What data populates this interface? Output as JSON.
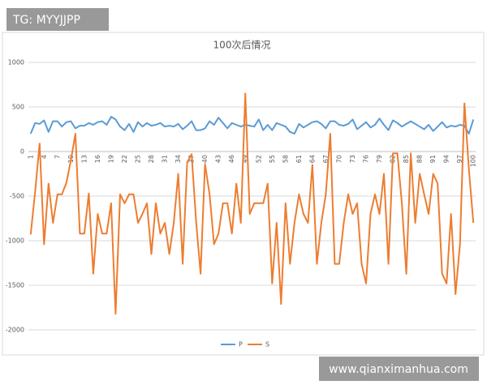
{
  "watermarks": {
    "top": "TG: MYYJJPP",
    "bottom": "www.qianximanhua.com"
  },
  "chart_data": {
    "type": "line",
    "title": "100次后情况",
    "categories": [
      1,
      null,
      null,
      4,
      null,
      null,
      7,
      null,
      null,
      10,
      null,
      null,
      13,
      null,
      null,
      16,
      null,
      null,
      19,
      null,
      null,
      22,
      null,
      null,
      25,
      null,
      null,
      28,
      null,
      null,
      31,
      null,
      null,
      34,
      null,
      null,
      37,
      null,
      null,
      40,
      null,
      null,
      43,
      null,
      null,
      46,
      null,
      null,
      49,
      null,
      null,
      52,
      null,
      null,
      55,
      null,
      null,
      58,
      null,
      null,
      61,
      null,
      null,
      64,
      null,
      null,
      67,
      null,
      null,
      70,
      null,
      null,
      73,
      null,
      null,
      76,
      null,
      null,
      79,
      null,
      null,
      82,
      null,
      null,
      85,
      null,
      null,
      88,
      null,
      null,
      91,
      null,
      null,
      94,
      null,
      null,
      97,
      null,
      null,
      100
    ],
    "series": [
      {
        "name": "P",
        "color": "#5b9bd5",
        "values": [
          200,
          320,
          310,
          350,
          220,
          340,
          340,
          280,
          330,
          340,
          260,
          290,
          290,
          320,
          300,
          330,
          340,
          300,
          390,
          360,
          280,
          240,
          310,
          220,
          330,
          280,
          320,
          290,
          300,
          320,
          280,
          290,
          280,
          310,
          250,
          290,
          340,
          240,
          240,
          260,
          340,
          300,
          380,
          320,
          260,
          320,
          300,
          280,
          300,
          290,
          280,
          360,
          240,
          300,
          240,
          320,
          300,
          280,
          220,
          200,
          310,
          270,
          300,
          330,
          340,
          310,
          260,
          340,
          340,
          300,
          290,
          310,
          360,
          250,
          290,
          330,
          270,
          300,
          370,
          300,
          240,
          350,
          320,
          280,
          310,
          340,
          310,
          280,
          250,
          300,
          230,
          280,
          330,
          270,
          290,
          280,
          300,
          290,
          200,
          360
        ]
      },
      {
        "name": "S",
        "color": "#ed7d31",
        "values": [
          -930,
          -450,
          90,
          -1040,
          -360,
          -800,
          -480,
          -480,
          -350,
          -100,
          200,
          -920,
          -920,
          -470,
          -1370,
          -700,
          -920,
          -920,
          -580,
          -1820,
          -480,
          -580,
          -480,
          -480,
          -800,
          -700,
          -580,
          -1150,
          -580,
          -920,
          -800,
          -1150,
          -800,
          -250,
          -1260,
          -120,
          -30,
          -780,
          -1370,
          -140,
          -480,
          -1040,
          -920,
          -580,
          -580,
          -920,
          -360,
          -800,
          650,
          -700,
          -580,
          -580,
          -580,
          -360,
          -1480,
          -800,
          -1710,
          -580,
          -1260,
          -800,
          -480,
          -700,
          -800,
          -150,
          -1260,
          -800,
          -480,
          200,
          -1260,
          -1260,
          -800,
          -480,
          -700,
          -580,
          -1260,
          -1480,
          -700,
          -480,
          -700,
          -250,
          -1260,
          -20,
          -20,
          -580,
          -1370,
          -20,
          -800,
          -250,
          -480,
          -700,
          -250,
          -360,
          -1370,
          -1480,
          -700,
          -1600,
          -1040,
          540,
          -200,
          -800
        ]
      }
    ],
    "ylim": [
      -2000,
      1000
    ],
    "yticks": [
      -2000,
      -1500,
      -1000,
      -500,
      0,
      500,
      1000
    ],
    "grid": true
  }
}
